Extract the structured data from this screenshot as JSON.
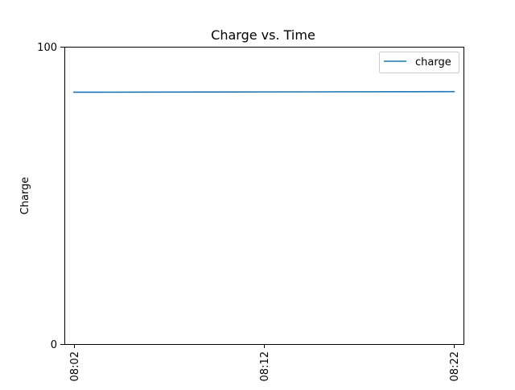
{
  "chart_data": {
    "type": "line",
    "title": "Charge vs. Time",
    "xlabel": "",
    "ylabel": "Charge",
    "x_ticks": [
      "08:02",
      "08:12",
      "08:22"
    ],
    "x_tick_minutes": [
      0,
      10,
      20
    ],
    "xlim_minutes": [
      -0.5,
      20.5
    ],
    "yticks": [
      0,
      100
    ],
    "ylim": [
      0,
      100
    ],
    "grid": false,
    "legend_position": "top-right",
    "series": [
      {
        "name": "charge",
        "color": "#1f77b4",
        "x_minutes": [
          0,
          20
        ],
        "values": [
          84.7,
          84.9
        ]
      }
    ]
  }
}
